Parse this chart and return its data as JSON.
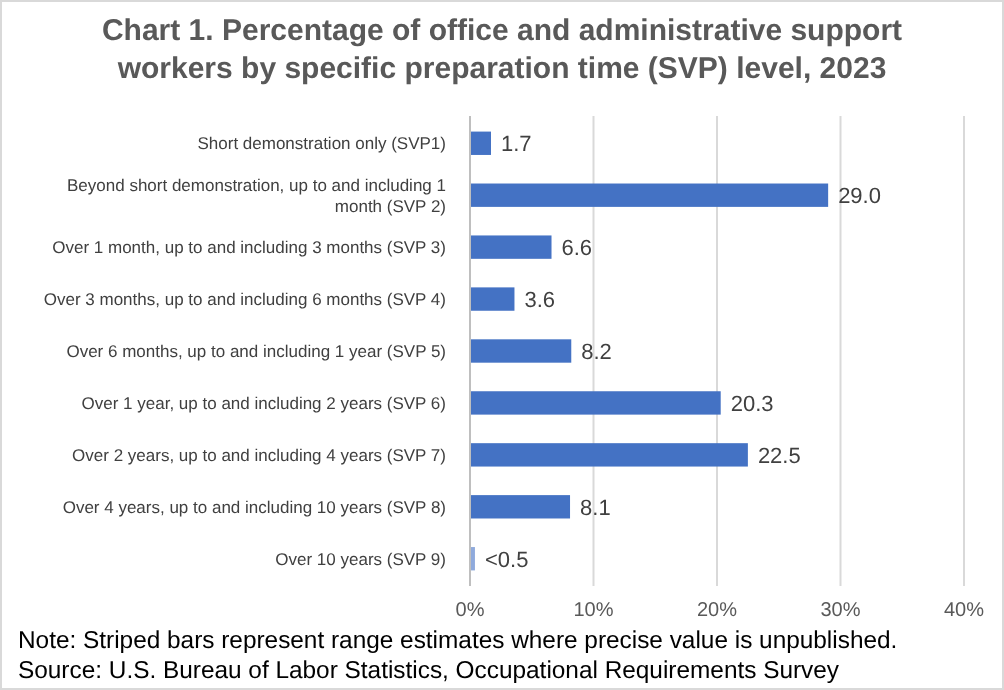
{
  "chart_data": {
    "type": "bar",
    "orientation": "horizontal",
    "title": "Chart 1. Percentage of office and administrative support workers by specific preparation time (SVP) level, 2023",
    "categories": [
      "Short demonstration only (SVP1)",
      "Beyond short demonstration, up to and including 1 month (SVP 2)",
      "Over 1 month, up to and including 3 months (SVP 3)",
      "Over 3 months, up to and including 6 months (SVP 4)",
      "Over 6 months, up to and including 1 year (SVP 5)",
      "Over 1 year, up to and including 2 years (SVP 6)",
      "Over 2 years, up to and including 4 years (SVP 7)",
      "Over 4 years, up to and including 10 years (SVP 8)",
      "Over 10 years (SVP 9)"
    ],
    "values": [
      1.7,
      29.0,
      6.6,
      3.6,
      8.2,
      20.3,
      22.5,
      8.1,
      0.4
    ],
    "value_labels": [
      "1.7",
      "29.0",
      "6.6",
      "3.6",
      "8.2",
      "20.3",
      "22.5",
      "8.1",
      "<0.5"
    ],
    "colors": [
      "#4472c4",
      "#4472c4",
      "#4472c4",
      "#4472c4",
      "#4472c4",
      "#4472c4",
      "#4472c4",
      "#4472c4",
      "#8faadc"
    ],
    "xlim": [
      0,
      40
    ],
    "xticks": [
      {
        "value": 0,
        "label": "0%"
      },
      {
        "value": 10,
        "label": "10%"
      },
      {
        "value": 20,
        "label": "20%"
      },
      {
        "value": 30,
        "label": "30%"
      },
      {
        "value": 40,
        "label": "40%"
      }
    ],
    "grid": "x",
    "annotations": [
      "Note: Striped bars represent range estimates where precise value is unpublished.",
      "Source: U.S. Bureau of Labor Statistics, Occupational Requirements Survey"
    ]
  }
}
